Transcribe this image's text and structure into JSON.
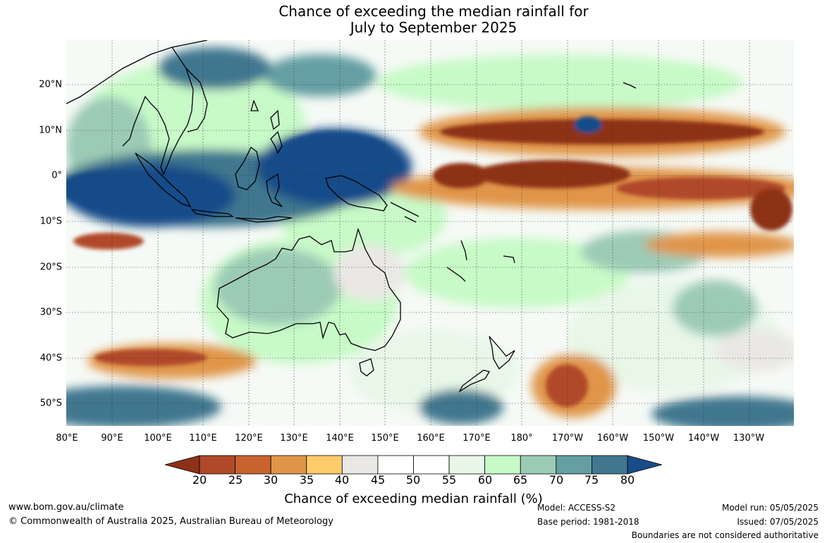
{
  "title": {
    "line1": "Chance of exceeding the median rainfall for",
    "line2": "July to September 2025"
  },
  "map": {
    "lat_labels": [
      "20°N",
      "10°N",
      "0°",
      "10°S",
      "20°S",
      "30°S",
      "40°S",
      "50°S"
    ],
    "lon_labels": [
      "80°E",
      "90°E",
      "100°E",
      "110°E",
      "120°E",
      "130°E",
      "140°E",
      "150°E",
      "160°E",
      "170°E",
      "180°",
      "170°W",
      "160°W",
      "150°W",
      "140°W",
      "130°W"
    ]
  },
  "colorbar": {
    "labels": [
      "20",
      "25",
      "30",
      "35",
      "40",
      "45",
      "50",
      "55",
      "60",
      "65",
      "70",
      "75",
      "80"
    ],
    "colors": [
      "#8e3119",
      "#b0492a",
      "#c8632f",
      "#e09548",
      "#fecb6b",
      "#eae8e4",
      "#ffffff",
      "#ffffff",
      "#e8f7e8",
      "#c8fac8",
      "#9ccbb5",
      "#659fa3",
      "#41778f",
      "#174c89"
    ],
    "title": "Chance of exceeding median rainfall (%)"
  },
  "footer": {
    "website": "www.bom.gov.au/climate",
    "copyright": "© Commonwealth of Australia 2025, Australian Bureau of Meteorology",
    "model": "Model: ACCESS-S2",
    "base_period": "Base period: 1981-2018",
    "model_run": "Model run: 05/05/2025",
    "issued": "Issued: 07/05/2025",
    "disclaimer": "Boundaries are not considered authoritative"
  }
}
